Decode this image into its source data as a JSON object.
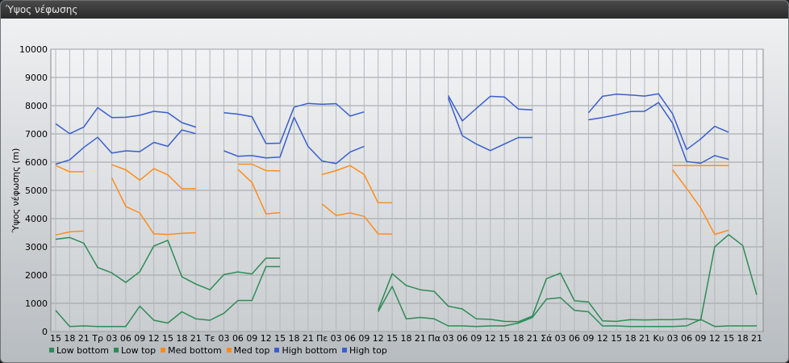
{
  "window": {
    "title": "Ύψος νέφωσης"
  },
  "chart_data": {
    "type": "line",
    "title": "",
    "xlabel": "",
    "ylabel": "Ύψος νέφωσης (m)",
    "ylim": [
      0,
      10000
    ],
    "yticks": [
      0,
      1000,
      2000,
      3000,
      4000,
      5000,
      6000,
      7000,
      8000,
      9000,
      10000
    ],
    "grid": true,
    "legend_position": "bottom-left",
    "categories": [
      "15",
      "18",
      "21",
      "Τρ",
      "03",
      "06",
      "09",
      "12",
      "15",
      "18",
      "21",
      "Τε",
      "03",
      "06",
      "09",
      "12",
      "15",
      "18",
      "21",
      "Πε",
      "03",
      "06",
      "09",
      "12",
      "15",
      "18",
      "21",
      "Πα",
      "03",
      "06",
      "09",
      "12",
      "15",
      "18",
      "21",
      "Σά",
      "03",
      "06",
      "09",
      "12",
      "15",
      "18",
      "21",
      "Κυ",
      "03",
      "06",
      "09",
      "12",
      "15",
      "18",
      "21"
    ],
    "series": [
      {
        "name": "Low bottom",
        "color": "#2e8b57",
        "values": [
          750,
          180,
          200,
          180,
          180,
          180,
          900,
          400,
          300,
          700,
          450,
          400,
          650,
          1100,
          1100,
          2300,
          2300,
          null,
          null,
          null,
          null,
          null,
          null,
          700,
          1600,
          450,
          500,
          450,
          200,
          200,
          180,
          200,
          200,
          300,
          500,
          1150,
          1200,
          750,
          700,
          200,
          200,
          180,
          180,
          180,
          180,
          200,
          430,
          180,
          200,
          200,
          200
        ]
      },
      {
        "name": "Low top",
        "color": "#2e8b57",
        "values": [
          3270,
          3330,
          3130,
          2270,
          2080,
          1740,
          2120,
          3030,
          3230,
          1940,
          1680,
          1480,
          2020,
          2110,
          2040,
          2600,
          2600,
          null,
          null,
          null,
          null,
          null,
          null,
          760,
          2050,
          1630,
          1480,
          1420,
          900,
          800,
          450,
          430,
          360,
          350,
          550,
          1870,
          2070,
          1090,
          1050,
          380,
          360,
          420,
          410,
          420,
          420,
          450,
          400,
          3000,
          3430,
          3050,
          1300
        ]
      },
      {
        "name": "Med bottom",
        "color": "#ff8c1a",
        "values": [
          3420,
          3530,
          3560,
          null,
          5450,
          4430,
          4200,
          3460,
          3440,
          3480,
          3500,
          null,
          null,
          5750,
          5280,
          4170,
          4210,
          null,
          null,
          4520,
          4110,
          4200,
          4080,
          3460,
          3450,
          null,
          null,
          null,
          null,
          null,
          null,
          null,
          null,
          null,
          null,
          null,
          null,
          null,
          null,
          null,
          null,
          null,
          null,
          null,
          5730,
          5070,
          4380,
          3440,
          3590,
          null,
          null
        ]
      },
      {
        "name": "Med top",
        "color": "#ff8c1a",
        "values": [
          5880,
          5660,
          5660,
          null,
          5910,
          5730,
          5360,
          5770,
          5550,
          5060,
          5060,
          null,
          null,
          5930,
          5930,
          5700,
          5690,
          null,
          null,
          5560,
          5700,
          5880,
          5560,
          4560,
          4560,
          null,
          null,
          null,
          null,
          null,
          null,
          null,
          null,
          null,
          null,
          null,
          null,
          null,
          null,
          null,
          null,
          null,
          null,
          null,
          5880,
          5880,
          5880,
          5880,
          5880,
          null,
          null
        ]
      },
      {
        "name": "High bottom",
        "color": "#3a5fcd",
        "values": [
          5930,
          6080,
          6520,
          6880,
          6320,
          6400,
          6370,
          6700,
          6560,
          7140,
          7010,
          null,
          6400,
          6210,
          6230,
          6150,
          6180,
          7590,
          6560,
          6040,
          5950,
          6360,
          6560,
          null,
          null,
          null,
          null,
          null,
          8280,
          6940,
          6640,
          6410,
          6640,
          6870,
          6870,
          null,
          null,
          null,
          7750,
          8330,
          8410,
          8380,
          8340,
          8420,
          7710,
          6450,
          6820,
          7270,
          7060,
          null,
          null
        ]
      },
      {
        "name": "High top",
        "color": "#3a5fcd",
        "values": [
          7360,
          7010,
          7240,
          7930,
          7580,
          7590,
          7660,
          7800,
          7750,
          7400,
          7240,
          null,
          7750,
          7700,
          7610,
          6660,
          6670,
          7950,
          8080,
          8050,
          8070,
          7630,
          7780,
          null,
          null,
          null,
          null,
          null,
          8360,
          7460,
          7900,
          8330,
          8310,
          7880,
          7850,
          null,
          null,
          null,
          7500,
          7580,
          7680,
          7790,
          7800,
          8110,
          7380,
          6020,
          5960,
          6230,
          6100,
          null,
          null
        ]
      }
    ]
  }
}
